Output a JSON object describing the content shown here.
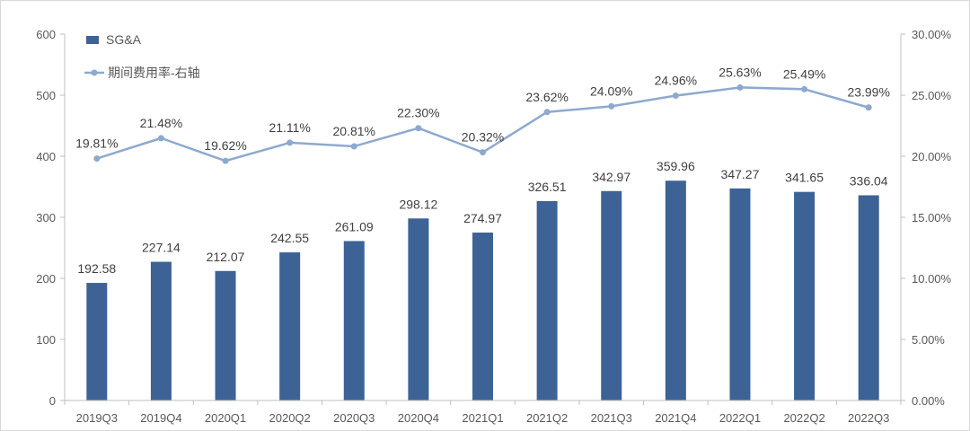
{
  "chart_data": {
    "type": "bar+line",
    "categories": [
      "2019Q3",
      "2019Q4",
      "2020Q1",
      "2020Q2",
      "2020Q3",
      "2020Q4",
      "2021Q1",
      "2021Q2",
      "2021Q3",
      "2021Q4",
      "2022Q1",
      "2022Q2",
      "2022Q3"
    ],
    "series": [
      {
        "name": "SG&A",
        "type": "bar",
        "axis": "left",
        "color": "#3D6396",
        "values": [
          192.58,
          227.14,
          212.07,
          242.55,
          261.09,
          298.12,
          274.97,
          326.51,
          342.97,
          359.96,
          347.27,
          341.65,
          336.04
        ],
        "labels": [
          "192.58",
          "227.14",
          "212.07",
          "242.55",
          "261.09",
          "298.12",
          "274.97",
          "326.51",
          "342.97",
          "359.96",
          "347.27",
          "341.65",
          "336.04"
        ]
      },
      {
        "name": "期间费用率-右轴",
        "type": "line",
        "axis": "right",
        "color": "#8EA9CF",
        "values": [
          19.81,
          21.48,
          19.62,
          21.11,
          20.81,
          22.3,
          20.32,
          23.62,
          24.09,
          24.96,
          25.63,
          25.49,
          23.99
        ],
        "labels": [
          "19.81%",
          "21.48%",
          "19.62%",
          "21.11%",
          "20.81%",
          "22.30%",
          "20.32%",
          "23.62%",
          "24.09%",
          "24.96%",
          "25.63%",
          "25.49%",
          "23.99%"
        ]
      }
    ],
    "y_left": {
      "min": 0,
      "max": 600,
      "ticks": [
        "0",
        "100",
        "200",
        "300",
        "400",
        "500",
        "600"
      ]
    },
    "y_right": {
      "min": 0,
      "max": 30,
      "ticks": [
        "0.00%",
        "5.00%",
        "10.00%",
        "15.00%",
        "20.00%",
        "25.00%",
        "30.00%"
      ]
    },
    "title": "",
    "legend": {
      "position": "top-left"
    },
    "grid": false
  }
}
